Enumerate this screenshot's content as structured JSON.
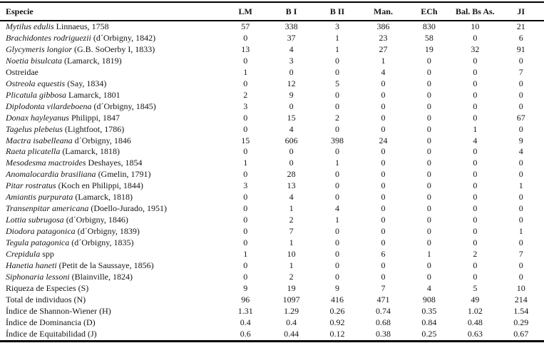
{
  "table": {
    "columns": [
      "Especie",
      "LM",
      "B I",
      "B II",
      "Man.",
      "ECh",
      "Bal. Bs As.",
      "JI"
    ],
    "rows": [
      {
        "italic": "Mytilus edulis",
        "roman": "Linnaeus, 1758",
        "values": [
          "57",
          "338",
          "3",
          "386",
          "830",
          "10",
          "21"
        ]
      },
      {
        "italic": "Brachidontes rodriguezii",
        "roman": "(d´Orbigny, 1842)",
        "values": [
          "0",
          "37",
          "1",
          "23",
          "58",
          "0",
          "6"
        ]
      },
      {
        "italic": "Glycymeris longior",
        "roman": "(G.B. SoOerby I, 1833)",
        "values": [
          "13",
          "4",
          "1",
          "27",
          "19",
          "32",
          "91"
        ]
      },
      {
        "italic": "Noetia bisulcata",
        "roman": "(Lamarck, 1819)",
        "values": [
          "0",
          "3",
          "0",
          "1",
          "0",
          "0",
          "0"
        ]
      },
      {
        "italic": "",
        "roman": "Ostreidae",
        "values": [
          "1",
          "0",
          "0",
          "4",
          "0",
          "0",
          "7"
        ]
      },
      {
        "italic": "Ostreola equestis",
        "roman": "(Say, 1834)",
        "values": [
          "0",
          "12",
          "5",
          "0",
          "0",
          "0",
          "0"
        ]
      },
      {
        "italic": "Plicatula gibbosa",
        "roman": "Lamarck, 1801",
        "values": [
          "2",
          "9",
          "0",
          "0",
          "0",
          "0",
          "0"
        ]
      },
      {
        "italic": "Diplodonta vilardeboena",
        "roman": "(d´Orbigny, 1845)",
        "values": [
          "3",
          "0",
          "0",
          "0",
          "0",
          "0",
          "0"
        ]
      },
      {
        "italic": "Donax hayleyanus",
        "roman": "Philippi, 1847",
        "values": [
          "0",
          "15",
          "2",
          "0",
          "0",
          "0",
          "67"
        ]
      },
      {
        "italic": "Tagelus plebeius",
        "roman": "(Lightfoot, 1786)",
        "values": [
          "0",
          "4",
          "0",
          "0",
          "0",
          "1",
          "0"
        ]
      },
      {
        "italic": "Mactra isabelleana",
        "roman": "d´Orbigny, 1846",
        "values": [
          "15",
          "606",
          "398",
          "24",
          "0",
          "4",
          "9"
        ]
      },
      {
        "italic": "Raeta plicatella",
        "roman": "(Lamarck, 1818)",
        "values": [
          "0",
          "0",
          "0",
          "0",
          "0",
          "0",
          "4"
        ]
      },
      {
        "italic": "Mesodesma mactroides",
        "roman": "Deshayes, 1854",
        "values": [
          "1",
          "0",
          "1",
          "0",
          "0",
          "0",
          "0"
        ]
      },
      {
        "italic": "Anomalocardia brasiliana",
        "roman": "(Gmelin, 1791)",
        "values": [
          "0",
          "28",
          "0",
          "0",
          "0",
          "0",
          "0"
        ]
      },
      {
        "italic": "Pitar rostratus",
        "roman": "(Koch en Philippi, 1844)",
        "values": [
          "3",
          "13",
          "0",
          "0",
          "0",
          "0",
          "1"
        ]
      },
      {
        "italic": "Amiantis purpurata",
        "roman": "(Lamarck, 1818)",
        "values": [
          "0",
          "4",
          "0",
          "0",
          "0",
          "0",
          "0"
        ]
      },
      {
        "italic": "Transenpitar americana",
        "roman": "(Doello-Jurado, 1951)",
        "values": [
          "0",
          "1",
          "4",
          "0",
          "0",
          "0",
          "0"
        ]
      },
      {
        "italic": "Lottia subrugosa",
        "roman": "(d´Orbigny, 1846)",
        "values": [
          "0",
          "2",
          "1",
          "0",
          "0",
          "0",
          "0"
        ]
      },
      {
        "italic": "Diodora patagonica",
        "roman": "(d´Orbigny, 1839)",
        "values": [
          "0",
          "7",
          "0",
          "0",
          "0",
          "0",
          "1"
        ]
      },
      {
        "italic": "Tegula patagonica",
        "roman": "(d´Orbigny, 1835)",
        "values": [
          "0",
          "1",
          "0",
          "0",
          "0",
          "0",
          "0"
        ]
      },
      {
        "italic": "Crepidula",
        "roman": "spp",
        "values": [
          "1",
          "10",
          "0",
          "6",
          "1",
          "2",
          "7"
        ]
      },
      {
        "italic": "Hanetia haneti",
        "roman": "(Petit de la Saussaye, 1856)",
        "values": [
          "0",
          "1",
          "0",
          "0",
          "0",
          "0",
          "0"
        ]
      },
      {
        "italic": "Siphonaria lessoni",
        "roman": "(Blainville, 1824)",
        "values": [
          "0",
          "2",
          "0",
          "0",
          "0",
          "0",
          "0"
        ]
      },
      {
        "italic": "",
        "roman": "Riqueza de Especies (S)",
        "values": [
          "9",
          "19",
          "9",
          "7",
          "4",
          "5",
          "10"
        ]
      },
      {
        "italic": "",
        "roman": "Total de individuos (N)",
        "values": [
          "96",
          "1097",
          "416",
          "471",
          "908",
          "49",
          "214"
        ]
      },
      {
        "italic": "",
        "roman": "Índice de Shannon-Wiener (H)",
        "values": [
          "1.31",
          "1.29",
          "0.26",
          "0.74",
          "0.35",
          "1.02",
          "1.54"
        ]
      },
      {
        "italic": "",
        "roman": "Índice de Dominancia (D)",
        "values": [
          "0.4",
          "0.4",
          "0.92",
          "0.68",
          "0.84",
          "0.48",
          "0.29"
        ]
      },
      {
        "italic": "",
        "roman": "Índice de Equitabilidad (J)",
        "values": [
          "0.6",
          "0.44",
          "0.12",
          "0.38",
          "0.25",
          "0.63",
          "0.67"
        ]
      }
    ]
  },
  "colors": {
    "text": "#141414",
    "rule": "#000000",
    "background": "#ffffff"
  }
}
